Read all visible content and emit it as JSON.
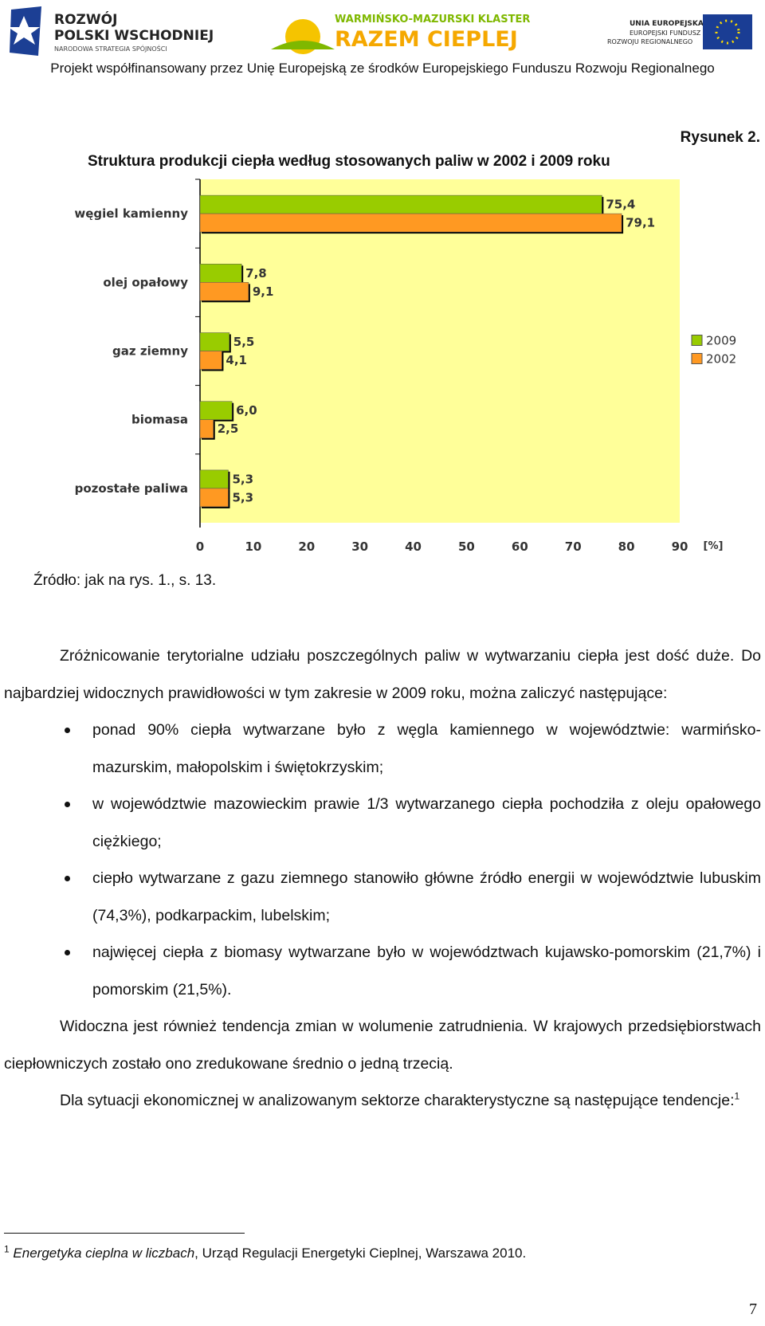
{
  "header": {
    "logo_left": [
      "ROZWÓJ",
      "POLSKI WSCHODNIEJ",
      "NARODOWA STRATEGIA SPÓJNOŚCI"
    ],
    "logo_center": [
      "WARMIŃSKO-MAZURSKI KLASTER",
      "RAZEM CIEPLEJ"
    ],
    "logo_right": [
      "UNIA EUROPEJSKA",
      "EUROPEJSKI FUNDUSZ",
      "ROZWOJU REGIONALNEGO"
    ],
    "line": "Projekt współfinansowany przez Unię Europejską ze środków Europejskiego Funduszu Rozwoju Regionalnego"
  },
  "figure_label": "Rysunek 2.",
  "chart_data": {
    "type": "bar",
    "orientation": "horizontal",
    "title": "Struktura produkcji ciepła według stosowanych paliw w 2002 i 2009 roku",
    "categories": [
      "węgiel kamienny",
      "olej opałowy",
      "gaz ziemny",
      "biomasa",
      "pozostałe paliwa"
    ],
    "series": [
      {
        "name": "2009",
        "color": "#99cc00",
        "values": [
          75.4,
          7.8,
          5.5,
          6.0,
          5.3
        ],
        "value_labels": [
          "75,4",
          "7,8",
          "5,5",
          "6,0",
          "5,3"
        ]
      },
      {
        "name": "2002",
        "color": "#ff9922",
        "values": [
          79.1,
          9.1,
          4.1,
          2.5,
          5.3
        ],
        "value_labels": [
          "79,1",
          "9,1",
          "4,1",
          "2,5",
          "5,3"
        ]
      }
    ],
    "xlim": [
      0,
      90
    ],
    "xticks": [
      0,
      10,
      20,
      30,
      40,
      50,
      60,
      70,
      80,
      90
    ],
    "xlabel": "[%]",
    "legend": "right",
    "background": "#ffff99"
  },
  "source": "Źródło: jak na rys. 1., s. 13.",
  "paragraphs": [
    "Zróżnicowanie terytorialne udziału poszczególnych paliw w wytwarzaniu ciepła jest dość duże. Do najbardziej widocznych prawidłowości w tym zakresie w 2009 roku, można zaliczyć następujące:"
  ],
  "bullets": [
    "ponad 90% ciepła wytwarzane było z węgla kamiennego w województwie: warmińsko-mazurskim, małopolskim i świętokrzyskim;",
    "w województwie mazowieckim prawie 1/3 wytwarzanego ciepła pochodziła z oleju opałowego ciężkiego;",
    "ciepło wytwarzane z gazu ziemnego stanowiło główne źródło energii w województwie lubuskim (74,3%), podkarpackim, lubelskim;",
    "najwięcej ciepła z biomasy wytwarzane było w województwach kujawsko-pomorskim (21,7%) i pomorskim (21,5%)."
  ],
  "paragraphs_after": [
    "Widoczna jest również tendencja zmian w wolumenie zatrudnienia. W krajowych przedsiębiorstwach ciepłowniczych zostało ono zredukowane średnio o jedną trzecią.",
    "Dla sytuacji ekonomicznej w analizowanym sektorze charakterystyczne są następujące tendencje:"
  ],
  "footnote_ref": "1",
  "footnote": {
    "marker": "1",
    "title": "Energetyka cieplna w liczbach",
    "rest": ", Urząd Regulacji Energetyki Cieplnej, Warszawa 2010."
  },
  "page_number": "7"
}
